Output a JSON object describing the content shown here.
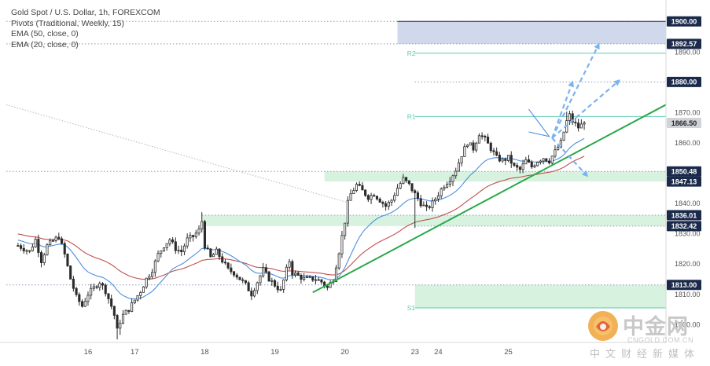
{
  "legend": {
    "symbol": "Gold Spot / U.S. Dollar, 1h, FOREXCOM",
    "pivots": "Pivots (Traditional, Weekly, 15)",
    "ema50": "EMA (50, close, 0)",
    "ema20": "EMA (20, close, 0)"
  },
  "watermark": {
    "main": "中金网",
    "url": "CNGOLD.COM.CN",
    "sub": "中文财经新媒体"
  },
  "colors": {
    "bull": "#ffffff",
    "bear": "#2b2b2b",
    "ema20": "#4a8fe0",
    "ema50": "#c0504d",
    "trend": "#2ba84a",
    "zone_green": "#c9efd4",
    "zone_blue": "#b7c3e0",
    "pivot": "#5cc9b5",
    "arrow": "#7ab3ee",
    "badge_dark": "#1b2a4a",
    "badge_current": "#d0d3d8"
  },
  "chart_data": {
    "type": "candlestick",
    "y_ticks": [
      1800,
      1810,
      1820,
      1830,
      1840,
      1850,
      1860,
      1870,
      1880,
      1890,
      1900
    ],
    "ylim": [
      1794,
      1905
    ],
    "x_labels": [
      {
        "label": "16",
        "hour": 24
      },
      {
        "label": "17",
        "hour": 40
      },
      {
        "label": "18",
        "hour": 64
      },
      {
        "label": "19",
        "hour": 88
      },
      {
        "label": "20",
        "hour": 112
      },
      {
        "label": "23",
        "hour": 136
      },
      {
        "label": "24",
        "hour": 144
      },
      {
        "label": "25",
        "hour": 168
      }
    ],
    "xlim": [
      -4,
      222
    ],
    "price_badges": [
      {
        "label": "1900.00",
        "value": 1900.0,
        "style": "dark"
      },
      {
        "label": "1892.57",
        "value": 1892.57,
        "style": "dark"
      },
      {
        "label": "1880.00",
        "value": 1880.0,
        "style": "dark"
      },
      {
        "label": "1866.50",
        "value": 1866.5,
        "style": "current"
      },
      {
        "label": "1850.48",
        "value": 1850.48,
        "style": "dark"
      },
      {
        "label": "1847.13",
        "value": 1847.13,
        "style": "dark"
      },
      {
        "label": "1836.01",
        "value": 1836.01,
        "style": "dark"
      },
      {
        "label": "1832.42",
        "value": 1832.42,
        "style": "dark"
      },
      {
        "label": "1813.00",
        "value": 1813.0,
        "style": "dark"
      }
    ],
    "pivots": [
      {
        "label": "R2",
        "value": 1889.5
      },
      {
        "label": "R1",
        "value": 1868.6
      },
      {
        "label": "S1",
        "value": 1805.4
      }
    ],
    "zones": [
      {
        "kind": "blue",
        "low": 1892.57,
        "high": 1900.0,
        "from_hour": 130
      },
      {
        "kind": "green",
        "low": 1847.13,
        "high": 1850.48,
        "from_hour": 105
      },
      {
        "kind": "green",
        "low": 1832.42,
        "high": 1836.01,
        "from_hour": 63
      },
      {
        "kind": "green",
        "low": 1805.4,
        "high": 1813.0,
        "from_hour": 136
      }
    ],
    "dotted_levels": [
      {
        "value": 1900.0,
        "from_hour": -4
      },
      {
        "value": 1892.57,
        "from_hour": -4
      },
      {
        "value": 1880.0,
        "from_hour": 136
      },
      {
        "value": 1850.48,
        "from_hour": -4
      },
      {
        "value": 1836.01,
        "from_hour": 63
      },
      {
        "value": 1832.42,
        "from_hour": 136
      },
      {
        "value": 1813.0,
        "from_hour": -4
      }
    ],
    "trendline": {
      "from": {
        "hour": 101,
        "value": 1810.5
      },
      "to": {
        "hour": 222,
        "value": 1872.5
      }
    },
    "faint_line": {
      "from": {
        "hour": -4,
        "value": 1872.5
      },
      "to": {
        "hour": 113,
        "value": 1840.2
      }
    },
    "triangle": [
      {
        "hour": 175,
        "value": 1871.0
      },
      {
        "hour": 182,
        "value": 1862.0
      },
      {
        "hour": 175,
        "value": 1863.5
      }
    ],
    "arrows": [
      {
        "from": {
          "hour": 183,
          "value": 1861.5
        },
        "to": {
          "hour": 190,
          "value": 1880.0
        }
      },
      {
        "from": {
          "hour": 183,
          "value": 1861.5
        },
        "to": {
          "hour": 199,
          "value": 1892.5
        }
      },
      {
        "from": {
          "hour": 183,
          "value": 1861.5
        },
        "to": {
          "hour": 206,
          "value": 1880.5
        }
      },
      {
        "from": {
          "hour": 183,
          "value": 1861.5
        },
        "to": {
          "hour": 195,
          "value": 1849.0
        }
      }
    ],
    "candle_anchors": [
      [
        0,
        1826.0
      ],
      [
        4,
        1824.0
      ],
      [
        6,
        1828.0
      ],
      [
        8,
        1821.0
      ],
      [
        10,
        1826.0
      ],
      [
        14,
        1829.0
      ],
      [
        16,
        1823.0
      ],
      [
        18,
        1815.0
      ],
      [
        20,
        1809.0
      ],
      [
        22,
        1806.0
      ],
      [
        24,
        1810.0
      ],
      [
        26,
        1812.0
      ],
      [
        28,
        1814.0
      ],
      [
        30,
        1811.0
      ],
      [
        32,
        1806.0
      ],
      [
        33,
        1803.0
      ],
      [
        34,
        1798.0
      ],
      [
        35,
        1801.0
      ],
      [
        36,
        1803.0
      ],
      [
        38,
        1805.0
      ],
      [
        40,
        1808.0
      ],
      [
        42,
        1811.0
      ],
      [
        44,
        1815.0
      ],
      [
        46,
        1818.0
      ],
      [
        48,
        1823.0
      ],
      [
        50,
        1826.0
      ],
      [
        52,
        1828.0
      ],
      [
        54,
        1825.0
      ],
      [
        56,
        1824.0
      ],
      [
        58,
        1828.0
      ],
      [
        60,
        1829.0
      ],
      [
        62,
        1831.0
      ],
      [
        63,
        1834.0
      ],
      [
        64,
        1826.0
      ],
      [
        66,
        1822.0
      ],
      [
        68,
        1824.0
      ],
      [
        70,
        1821.0
      ],
      [
        72,
        1818.0
      ],
      [
        74,
        1817.0
      ],
      [
        76,
        1815.0
      ],
      [
        78,
        1813.0
      ],
      [
        80,
        1810.0
      ],
      [
        82,
        1814.0
      ],
      [
        84,
        1818.0
      ],
      [
        86,
        1815.0
      ],
      [
        88,
        1813.0
      ],
      [
        90,
        1811.0
      ],
      [
        92,
        1818.0
      ],
      [
        93,
        1821.0
      ],
      [
        94,
        1817.0
      ],
      [
        96,
        1816.0
      ],
      [
        98,
        1815.0
      ],
      [
        100,
        1815.0
      ],
      [
        102,
        1815.0
      ],
      [
        104,
        1814.0
      ],
      [
        106,
        1812.0
      ],
      [
        108,
        1815.0
      ],
      [
        110,
        1824.0
      ],
      [
        112,
        1834.0
      ],
      [
        113,
        1840.0
      ],
      [
        114,
        1843.0
      ],
      [
        116,
        1846.0
      ],
      [
        118,
        1844.0
      ],
      [
        120,
        1842.0
      ],
      [
        122,
        1843.0
      ],
      [
        124,
        1841.0
      ],
      [
        126,
        1839.0
      ],
      [
        128,
        1841.0
      ],
      [
        130,
        1845.0
      ],
      [
        132,
        1848.0
      ],
      [
        134,
        1846.0
      ],
      [
        136,
        1843.0
      ],
      [
        138,
        1840.0
      ],
      [
        140,
        1838.0
      ],
      [
        142,
        1840.0
      ],
      [
        144,
        1843.0
      ],
      [
        146,
        1846.0
      ],
      [
        148,
        1848.0
      ],
      [
        150,
        1851.0
      ],
      [
        152,
        1856.0
      ],
      [
        154,
        1860.0
      ],
      [
        156,
        1858.0
      ],
      [
        158,
        1863.0
      ],
      [
        160,
        1861.0
      ],
      [
        162,
        1858.0
      ],
      [
        164,
        1855.0
      ],
      [
        166,
        1854.0
      ],
      [
        168,
        1855.0
      ],
      [
        170,
        1852.0
      ],
      [
        172,
        1851.0
      ],
      [
        174,
        1854.0
      ],
      [
        176,
        1852.0
      ],
      [
        178,
        1854.0
      ],
      [
        180,
        1855.0
      ],
      [
        182,
        1854.0
      ],
      [
        184,
        1857.0
      ],
      [
        186,
        1860.0
      ],
      [
        188,
        1867.0
      ],
      [
        189,
        1869.0
      ],
      [
        190,
        1867.0
      ],
      [
        192,
        1865.0
      ],
      [
        194,
        1866.5
      ]
    ]
  }
}
